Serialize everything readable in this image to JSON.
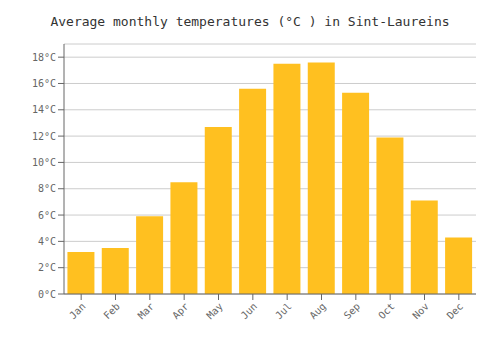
{
  "chart_data": {
    "type": "bar",
    "title": "Average monthly temperatures (°C ) in Sint-Laureins",
    "categories": [
      "Jan",
      "Feb",
      "Mar",
      "Apr",
      "May",
      "Jun",
      "Jul",
      "Aug",
      "Sep",
      "Oct",
      "Nov",
      "Dec"
    ],
    "values": [
      3.2,
      3.5,
      5.9,
      8.5,
      12.7,
      15.6,
      17.5,
      17.6,
      15.3,
      11.9,
      7.1,
      4.3
    ],
    "color": "#FFC020",
    "ylim": [
      0,
      19
    ],
    "yticks": [
      {
        "value": 0,
        "label": "0°C"
      },
      {
        "value": 2,
        "label": "2°C"
      },
      {
        "value": 4,
        "label": "4°C"
      },
      {
        "value": 6,
        "label": "6°C"
      },
      {
        "value": 8,
        "label": "8°C"
      },
      {
        "value": 10,
        "label": "10°C"
      },
      {
        "value": 12,
        "label": "12°C"
      },
      {
        "value": 14,
        "label": "14°C"
      },
      {
        "value": 16,
        "label": "16°C"
      },
      {
        "value": 18,
        "label": "18°C"
      }
    ],
    "grid": true
  }
}
